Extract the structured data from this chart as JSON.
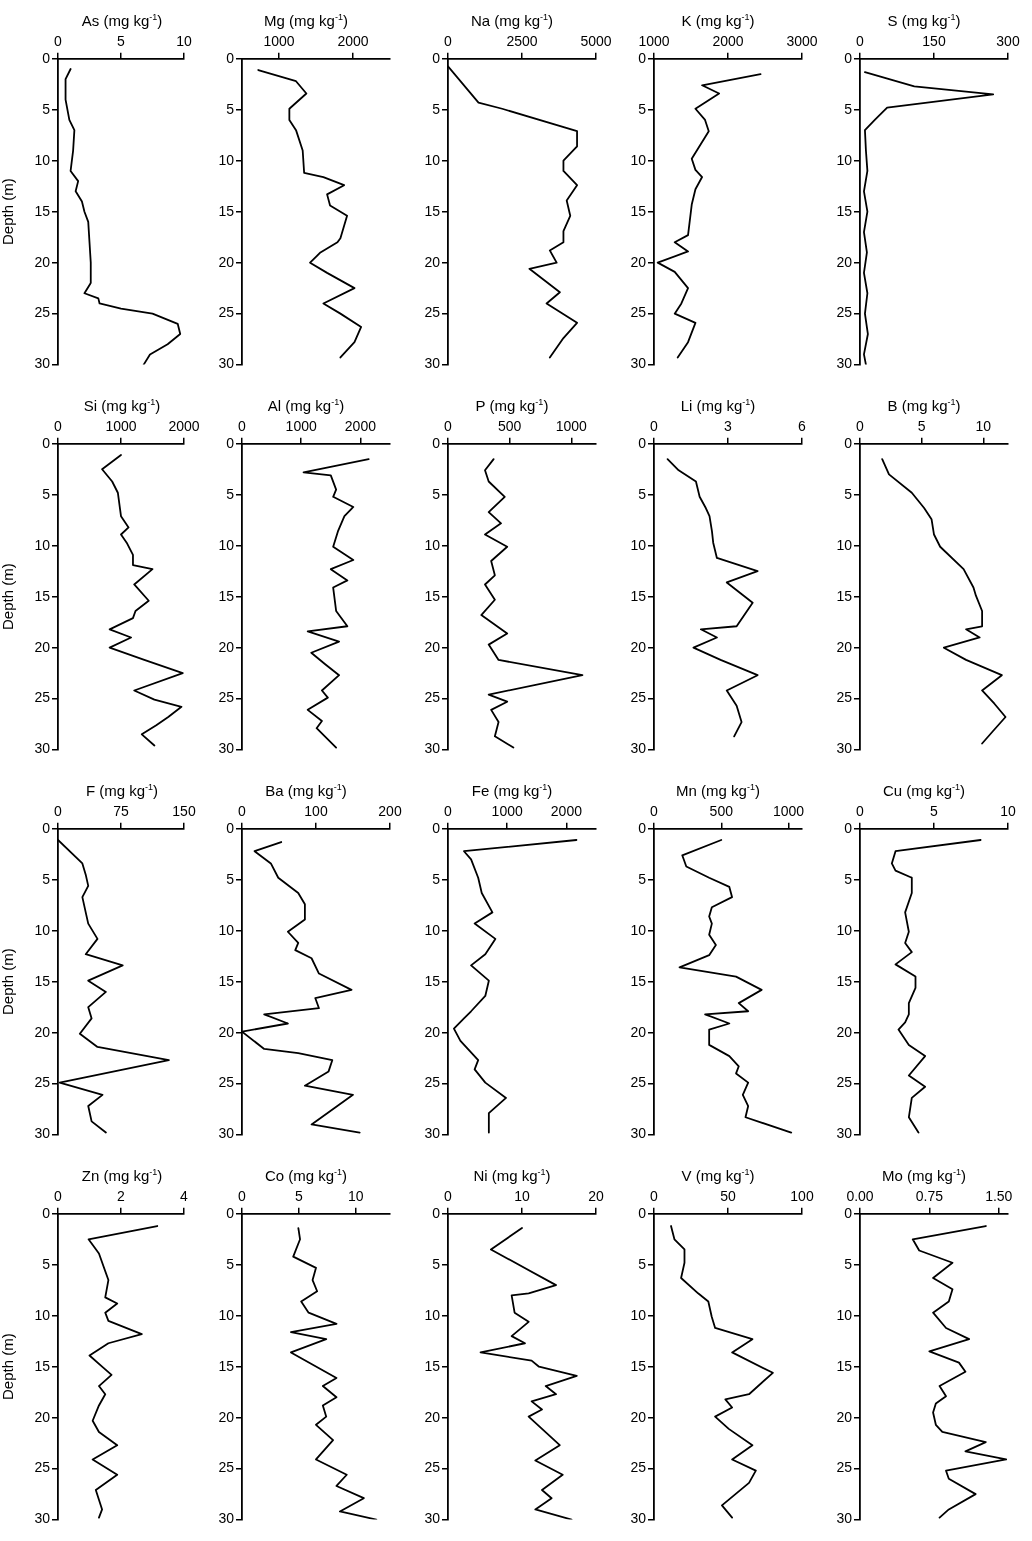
{
  "chart_data": [
    {
      "type": "line",
      "title": "As (mg kg$^{-1}$)",
      "ylabel": "Depth (m)",
      "xlim": [
        0,
        10
      ],
      "xticks": [
        0,
        5,
        10
      ],
      "ylim": [
        30,
        0
      ],
      "yticks": [
        0,
        5,
        10,
        15,
        20,
        25,
        30
      ],
      "series": [
        {
          "color": "#000000",
          "x": [
            1.0,
            0.6,
            0.6,
            0.9,
            1.3,
            1.2,
            1.1,
            1.0,
            1.6,
            1.4,
            1.9,
            2.1,
            2.4,
            2.5,
            2.6,
            2.6,
            2.1,
            3.2,
            3.3,
            5,
            7.5,
            9.5,
            9.7,
            8.7,
            7.3,
            6.8
          ],
          "values": [
            1,
            2,
            4,
            6,
            7,
            9,
            10,
            11,
            12,
            13,
            14,
            15,
            16,
            18,
            20,
            22,
            23,
            23.5,
            24,
            24.5,
            25,
            26,
            27,
            28,
            29,
            30
          ]
        }
      ]
    },
    {
      "type": "line",
      "title": "Mg (mg kg$^{-1}$)",
      "xlim": [
        500,
        2500
      ],
      "xticks": [
        1000,
        2000
      ],
      "ylim": [
        30,
        0
      ],
      "yticks": [
        0,
        5,
        10,
        15,
        20,
        25,
        30
      ],
      "series": [
        {
          "color": "#000000",
          "x": [
            720,
            1230,
            1370,
            1140,
            1140,
            1230,
            1320,
            1340,
            1600,
            1880,
            1650,
            1690,
            1920,
            1830,
            1790,
            1560,
            1420,
            1650,
            2020,
            1600,
            1830,
            2110,
            2020,
            1830
          ],
          "values": [
            1.1,
            2.2,
            3.4,
            4.9,
            6,
            7,
            9,
            11.2,
            11.6,
            12.4,
            13.3,
            14.4,
            15.4,
            17.6,
            18,
            19,
            20,
            21,
            22.5,
            24,
            25,
            26.3,
            27.8,
            29.3
          ]
        }
      ]
    },
    {
      "type": "line",
      "title": "Na (mg kg$^{-1}$)",
      "xlim": [
        0,
        5000
      ],
      "xticks": [
        0,
        2500,
        5000
      ],
      "ylim": [
        30,
        0
      ],
      "yticks": [
        0,
        5,
        10,
        15,
        20,
        25,
        30
      ],
      "series": [
        {
          "color": "#000000",
          "x": [
            0,
            1030,
            1830,
            4360,
            4360,
            3900,
            3900,
            4360,
            4010,
            4130,
            3900,
            3900,
            3440,
            3670,
            2750,
            3780,
            3330,
            4360,
            3900,
            3440
          ],
          "values": [
            0.75,
            4.3,
            4.9,
            7.1,
            8.6,
            10,
            11,
            12.4,
            13.9,
            15.4,
            16.9,
            18,
            18.8,
            20,
            20.6,
            22.9,
            24,
            25.9,
            27.4,
            29.3
          ]
        }
      ]
    },
    {
      "type": "line",
      "title": "K (mg kg$^{-1}$)",
      "xlim": [
        1000,
        3000
      ],
      "xticks": [
        1000,
        2000,
        3000
      ],
      "ylim": [
        30,
        0
      ],
      "yticks": [
        0,
        5,
        10,
        15,
        20,
        25,
        30
      ],
      "series": [
        {
          "color": "#000000",
          "x": [
            2440,
            1650,
            1880,
            1560,
            1690,
            1740,
            1510,
            1560,
            1650,
            1560,
            1510,
            1460,
            1280,
            1460,
            1050,
            1280,
            1460,
            1370,
            1280,
            1560,
            1460,
            1320
          ],
          "values": [
            1.5,
            2.6,
            3.4,
            4.9,
            6,
            7.1,
            9.8,
            10.9,
            11.6,
            12.8,
            14.3,
            17.3,
            18,
            18.9,
            20,
            20.9,
            22.5,
            24,
            25,
            25.9,
            27.8,
            29.3
          ]
        }
      ]
    },
    {
      "type": "line",
      "title": "S (mg kg$^{-1}$)",
      "xlim": [
        0,
        300
      ],
      "xticks": [
        0,
        150,
        300
      ],
      "ylim": [
        30,
        0
      ],
      "yticks": [
        0,
        5,
        10,
        15,
        20,
        25,
        30
      ],
      "series": [
        {
          "color": "#000000",
          "x": [
            10,
            110,
            270,
            55,
            30,
            10,
            12,
            15,
            8,
            15,
            8,
            14,
            8,
            15,
            10,
            16,
            8,
            12
          ],
          "values": [
            1.3,
            2.7,
            3.5,
            4.8,
            6,
            7,
            9,
            11,
            13,
            15,
            17,
            19,
            21,
            23,
            25,
            27,
            29,
            30
          ]
        }
      ]
    },
    {
      "type": "line",
      "title": "Si (mg kg$^{-1}$)",
      "ylabel": "Depth (m)",
      "xlim": [
        0,
        2000
      ],
      "xticks": [
        0,
        1000,
        2000
      ],
      "ylim": [
        30,
        0
      ],
      "yticks": [
        0,
        5,
        10,
        15,
        20,
        25,
        30
      ],
      "series": [
        {
          "color": "#000000",
          "x": [
            1000,
            700,
            860,
            950,
            1000,
            1120,
            1000,
            1090,
            1190,
            1190,
            1500,
            1210,
            1440,
            1230,
            1190,
            820,
            1160,
            820,
            1370,
            1980,
            1210,
            1530,
            1960,
            1750,
            1560,
            1330,
            1530
          ],
          "values": [
            1.1,
            2.5,
            3.7,
            4.8,
            7.1,
            8.2,
            8.9,
            9.7,
            10.9,
            11.9,
            12.3,
            13.8,
            15.4,
            16.4,
            17.1,
            18.2,
            19,
            20,
            21.2,
            22.5,
            24.2,
            25.1,
            25.8,
            26.8,
            27.6,
            28.5,
            29.6
          ]
        }
      ]
    },
    {
      "type": "line",
      "title": "Al (mg kg$^{-1}$)",
      "xlim": [
        0,
        2500
      ],
      "xticks": [
        0,
        1000,
        2000
      ],
      "ylim": [
        30,
        0
      ],
      "yticks": [
        0,
        5,
        10,
        15,
        20,
        25,
        30
      ],
      "series": [
        {
          "color": "#000000",
          "x": [
            2140,
            1040,
            1500,
            1590,
            1540,
            1880,
            1730,
            1620,
            1540,
            1880,
            1500,
            1780,
            1540,
            1590,
            1780,
            1110,
            1640,
            1170,
            1400,
            1640,
            1350,
            1450,
            1110,
            1350,
            1260,
            1590
          ],
          "values": [
            1.5,
            2.8,
            3.1,
            4.5,
            5.2,
            6.2,
            7.1,
            8.6,
            10.1,
            11.4,
            12.3,
            13.4,
            14.1,
            16.4,
            17.9,
            18.4,
            19.4,
            20.5,
            21.6,
            22.7,
            24.2,
            24.9,
            26.1,
            27.2,
            27.9,
            29.8
          ]
        }
      ]
    },
    {
      "type": "line",
      "title": "P (mg kg$^{-1}$)",
      "xlim": [
        0,
        1200
      ],
      "xticks": [
        0,
        500,
        1000
      ],
      "ylim": [
        30,
        0
      ],
      "yticks": [
        0,
        5,
        10,
        15,
        20,
        25,
        30
      ],
      "series": [
        {
          "color": "#000000",
          "x": [
            370,
            300,
            330,
            460,
            330,
            430,
            300,
            480,
            350,
            380,
            300,
            380,
            270,
            480,
            330,
            410,
            1090,
            330,
            480,
            350,
            410,
            380,
            530
          ],
          "values": [
            1.5,
            2.6,
            3.7,
            5.2,
            6.7,
            7.8,
            8.9,
            10.1,
            11.5,
            12.9,
            13.8,
            15.3,
            16.8,
            18.6,
            19.7,
            21.2,
            22.7,
            24.6,
            25.3,
            26.1,
            27.3,
            28.7,
            29.8
          ]
        }
      ]
    },
    {
      "type": "line",
      "title": "Li (mg kg$^{-1}$)",
      "xlim": [
        0,
        6
      ],
      "xticks": [
        0,
        3,
        6
      ],
      "ylim": [
        30,
        0
      ],
      "yticks": [
        0,
        5,
        10,
        15,
        20,
        25,
        30
      ],
      "series": [
        {
          "color": "#000000",
          "x": [
            0.55,
            1.0,
            1.7,
            1.85,
            2.1,
            2.25,
            2.35,
            2.4,
            2.55,
            4.2,
            2.95,
            4.0,
            3.35,
            1.9,
            2.55,
            1.6,
            2.7,
            4.2,
            2.95,
            3.35,
            3.55,
            3.25
          ],
          "values": [
            1.5,
            2.6,
            3.7,
            5.2,
            6.3,
            7.1,
            8.6,
            9.7,
            11.2,
            12.5,
            13.6,
            15.6,
            17.9,
            18.2,
            19,
            20,
            21.2,
            22.7,
            24.2,
            25.7,
            27.3,
            28.7
          ]
        }
      ]
    },
    {
      "type": "line",
      "title": "B (mg kg$^{-1}$)",
      "xlim": [
        0,
        12
      ],
      "xticks": [
        0,
        5,
        10
      ],
      "ylim": [
        30,
        0
      ],
      "yticks": [
        0,
        5,
        10,
        15,
        20,
        25,
        30
      ],
      "series": [
        {
          "color": "#000000",
          "x": [
            1.8,
            2.35,
            4.2,
            5.2,
            5.8,
            6.0,
            6.5,
            8.4,
            9.2,
            9.4,
            9.9,
            9.9,
            8.6,
            9.7,
            6.8,
            8.6,
            11.5,
            9.9,
            10.9,
            11.8,
            10.7,
            9.9
          ],
          "values": [
            1.5,
            3,
            4.8,
            6.3,
            7.4,
            8.9,
            10.1,
            12.3,
            14.1,
            14.9,
            16.4,
            17.9,
            18.2,
            19,
            20,
            21.2,
            22.7,
            24.2,
            25.5,
            26.8,
            28.3,
            29.4
          ]
        }
      ]
    },
    {
      "type": "line",
      "title": "F (mg kg$^{-1}$)",
      "ylabel": "Depth (m)",
      "xlim": [
        0,
        150
      ],
      "xticks": [
        0,
        75,
        150
      ],
      "ylim": [
        30,
        0
      ],
      "yticks": [
        0,
        5,
        10,
        15,
        20,
        25,
        30
      ],
      "series": [
        {
          "color": "#000000",
          "x": [
            0,
            29,
            33,
            36,
            29,
            33,
            36,
            47,
            33,
            77,
            36,
            57,
            36,
            40,
            26,
            47,
            132,
            2,
            53,
            36,
            40,
            57
          ],
          "values": [
            1.1,
            3.4,
            4.5,
            5.6,
            6.7,
            8.2,
            9.3,
            10.8,
            12.3,
            13.4,
            14.9,
            16,
            17.5,
            18.6,
            20.1,
            21.4,
            22.7,
            24.9,
            26.1,
            27.2,
            28.7,
            29.8
          ]
        }
      ]
    },
    {
      "type": "line",
      "title": "Ba (mg kg$^{-1}$)",
      "xlim": [
        0,
        200
      ],
      "xticks": [
        0,
        100,
        200
      ],
      "ylim": [
        30,
        0
      ],
      "yticks": [
        0,
        5,
        10,
        15,
        20,
        25,
        30
      ],
      "series": [
        {
          "color": "#000000",
          "x": [
            53,
            17,
            39,
            49,
            76,
            85,
            85,
            62,
            76,
            72,
            94,
            104,
            148,
            99,
            104,
            30,
            62,
            0,
            30,
            76,
            122,
            117,
            85,
            150,
            94,
            159
          ],
          "values": [
            1.3,
            2.2,
            3.4,
            4.8,
            6.3,
            7.4,
            8.9,
            10.1,
            11.2,
            11.9,
            12.7,
            14.2,
            15.8,
            16.6,
            17.6,
            18.2,
            19.1,
            19.9,
            21.6,
            22,
            22.7,
            23.8,
            25.2,
            26.1,
            29,
            29.8
          ]
        }
      ]
    },
    {
      "type": "line",
      "title": "Fe (mg kg$^{-1}$)",
      "xlim": [
        0,
        2500
      ],
      "xticks": [
        0,
        1000,
        2000
      ],
      "ylim": [
        30,
        0
      ],
      "yticks": [
        0,
        5,
        10,
        15,
        20,
        25,
        30
      ],
      "series": [
        {
          "color": "#000000",
          "x": [
            2170,
            270,
            390,
            510,
            570,
            750,
            450,
            800,
            630,
            390,
            690,
            630,
            390,
            270,
            100,
            210,
            510,
            450,
            630,
            980,
            690,
            690
          ],
          "values": [
            1.1,
            2.2,
            3,
            4.8,
            6.3,
            8.2,
            9.3,
            10.8,
            12.3,
            13.4,
            14.9,
            16.4,
            17.9,
            18.6,
            19.6,
            20.8,
            22.7,
            23.6,
            24.9,
            26.4,
            27.9,
            29.8
          ]
        }
      ]
    },
    {
      "type": "line",
      "title": "Mn (mg kg$^{-1}$)",
      "xlim": [
        0,
        1100
      ],
      "xticks": [
        0,
        500,
        1000
      ],
      "ylim": [
        30,
        0
      ],
      "yticks": [
        0,
        5,
        10,
        15,
        20,
        25,
        30
      ],
      "series": [
        {
          "color": "#000000",
          "x": [
            500,
            210,
            240,
            410,
            560,
            580,
            430,
            410,
            430,
            410,
            460,
            410,
            190,
            610,
            800,
            630,
            700,
            380,
            560,
            410,
            410,
            560,
            630,
            610,
            700,
            660,
            700,
            680,
            1020
          ],
          "values": [
            1.1,
            2.6,
            3.7,
            4.8,
            5.7,
            6.7,
            7.7,
            8.6,
            9.3,
            10.4,
            11.4,
            12.4,
            13.6,
            14.5,
            15.8,
            17.1,
            17.9,
            18.2,
            19.1,
            19.7,
            21.2,
            22.3,
            23.3,
            24,
            24.9,
            26.1,
            27.2,
            28.3,
            29.8
          ]
        }
      ]
    },
    {
      "type": "line",
      "title": "Cu (mg kg$^{-1}$)",
      "xlim": [
        0,
        10
      ],
      "xticks": [
        0,
        5,
        10
      ],
      "ylim": [
        30,
        0
      ],
      "yticks": [
        0,
        5,
        10,
        15,
        20,
        25,
        30
      ],
      "series": [
        {
          "color": "#000000",
          "x": [
            8.15,
            2.4,
            2.15,
            2.4,
            3.5,
            3.5,
            3.05,
            3.3,
            3.05,
            3.5,
            2.4,
            3.75,
            3.75,
            3.3,
            3.3,
            3.05,
            2.6,
            3.3,
            4.4,
            3.3,
            4.4,
            3.5,
            3.3,
            3.95
          ],
          "values": [
            1.1,
            2.2,
            3.4,
            4.1,
            4.8,
            6.3,
            8.2,
            10.1,
            11.2,
            12.1,
            13.3,
            14.5,
            15.6,
            17.1,
            18.2,
            19,
            19.7,
            21.2,
            22.3,
            24.2,
            25.3,
            26.4,
            28.3,
            29.8
          ]
        }
      ]
    },
    {
      "type": "line",
      "title": "Zn (mg kg$^{-1}$)",
      "ylabel": "Depth (m)",
      "xlim": [
        0,
        4
      ],
      "xticks": [
        0,
        2,
        4
      ],
      "ylim": [
        30,
        0
      ],
      "yticks": [
        0,
        5,
        10,
        15,
        20,
        25,
        30
      ],
      "series": [
        {
          "color": "#000000",
          "x": [
            3.15,
            0.97,
            1.3,
            1.6,
            1.5,
            1.88,
            1.5,
            1.6,
            2.66,
            1.6,
            1.0,
            1.4,
            1.7,
            1.3,
            1.5,
            1.3,
            1.1,
            1.3,
            1.88,
            1.1,
            1.88,
            1.2,
            1.4,
            1.3
          ],
          "values": [
            1.2,
            2.5,
            3.9,
            6.5,
            8.2,
            8.8,
            9.7,
            10.5,
            11.8,
            12.7,
            13.9,
            15,
            15.8,
            16.9,
            17.7,
            18.8,
            20.3,
            21.4,
            22.7,
            24.1,
            25.6,
            27.1,
            29,
            29.8
          ]
        }
      ]
    },
    {
      "type": "line",
      "title": "Co (mg kg$^{-1}$)",
      "xlim": [
        0,
        13
      ],
      "xticks": [
        0,
        5,
        10
      ],
      "ylim": [
        30,
        0
      ],
      "yticks": [
        0,
        5,
        10,
        15,
        20,
        25,
        30
      ],
      "series": [
        {
          "color": "#000000",
          "x": [
            4.95,
            5.1,
            4.5,
            6.5,
            6.2,
            6.6,
            5.2,
            5.85,
            8.3,
            4.3,
            7.4,
            4.3,
            8.3,
            7.1,
            8.3,
            7.1,
            7.4,
            6.5,
            8.0,
            6.5,
            9.2,
            8.3,
            10.7,
            8.6,
            11.8
          ],
          "values": [
            1.4,
            2.5,
            4.2,
            5.3,
            6.5,
            7.6,
            8.6,
            9.7,
            10.8,
            11.6,
            12.3,
            13.6,
            16.1,
            16.9,
            18,
            18.8,
            19.9,
            20.7,
            22.2,
            24.1,
            25.6,
            26.7,
            27.9,
            29.2,
            30
          ]
        }
      ]
    },
    {
      "type": "line",
      "title": "Ni (mg kg$^{-1}$)",
      "xlim": [
        0,
        20
      ],
      "xticks": [
        0,
        10,
        20
      ],
      "ylim": [
        30,
        0
      ],
      "yticks": [
        0,
        5,
        10,
        15,
        20,
        25,
        30
      ],
      "series": [
        {
          "color": "#000000",
          "x": [
            10,
            5.8,
            14.6,
            10.9,
            8.6,
            9.0,
            10.9,
            8.6,
            10.4,
            4.4,
            11.3,
            12.3,
            17.4,
            13.2,
            14.6,
            11.3,
            12.7,
            10.9,
            15.1,
            11.8,
            15.5,
            12.7,
            14,
            11.8,
            16.7
          ],
          "values": [
            1.4,
            3.5,
            7,
            7.8,
            8,
            9.7,
            10.6,
            12,
            12.7,
            13.6,
            14.4,
            15,
            15.9,
            16.9,
            17.7,
            18.4,
            19.2,
            19.9,
            22.7,
            24.2,
            25.6,
            27.1,
            27.9,
            29,
            30
          ]
        }
      ]
    },
    {
      "type": "line",
      "title": "V (mg kg$^{-1}$)",
      "xlim": [
        0,
        100
      ],
      "xticks": [
        0,
        50,
        100
      ],
      "ylim": [
        30,
        0
      ],
      "yticks": [
        0,
        5,
        10,
        15,
        20,
        25,
        30
      ],
      "series": [
        {
          "color": "#000000",
          "x": [
            11.5,
            13.8,
            20.6,
            20.6,
            18.3,
            29.8,
            36.7,
            39,
            41.3,
            66.5,
            52.8,
            80.3,
            64.2,
            48.2,
            52.8,
            41.3,
            50.5,
            66.5,
            52.8,
            68.8,
            64.2,
            45.9,
            52.8
          ],
          "values": [
            1.2,
            2.5,
            3.5,
            4.8,
            6.3,
            7.8,
            8.6,
            10.1,
            11.2,
            12.3,
            13.6,
            15.6,
            17.7,
            18.2,
            19,
            19.9,
            21.1,
            22.7,
            24.1,
            25.2,
            26.4,
            28.6,
            29.8
          ]
        }
      ]
    },
    {
      "type": "line",
      "title": "Mo (mg kg$^{-1}$)",
      "xlim": [
        0,
        1.6
      ],
      "xticks": [
        {
          "value": 0,
          "label": "0.00"
        },
        0.75,
        {
          "value": 1.5,
          "label": "1.50"
        }
      ],
      "ylim": [
        30,
        0
      ],
      "yticks": [
        0,
        5,
        10,
        15,
        20,
        25,
        30
      ],
      "series": [
        {
          "color": "#000000",
          "x": [
            1.36,
            0.57,
            0.64,
            1.0,
            0.79,
            1.0,
            0.96,
            0.79,
            0.93,
            1.18,
            0.75,
            1.07,
            1.14,
            0.86,
            0.93,
            0.82,
            0.79,
            0.82,
            0.89,
            1.36,
            1.14,
            1.58,
            0.93,
            0.96,
            1.25,
            0.96,
            0.86
          ],
          "values": [
            1.2,
            2.5,
            3.6,
            4.8,
            6.3,
            7.4,
            8.6,
            9.7,
            11.2,
            12.3,
            13.5,
            14.6,
            15.5,
            16.9,
            17.9,
            18.6,
            19.5,
            20.7,
            21.4,
            22.4,
            23.3,
            24.1,
            25.2,
            26,
            27.5,
            29,
            29.8
          ]
        }
      ]
    }
  ]
}
